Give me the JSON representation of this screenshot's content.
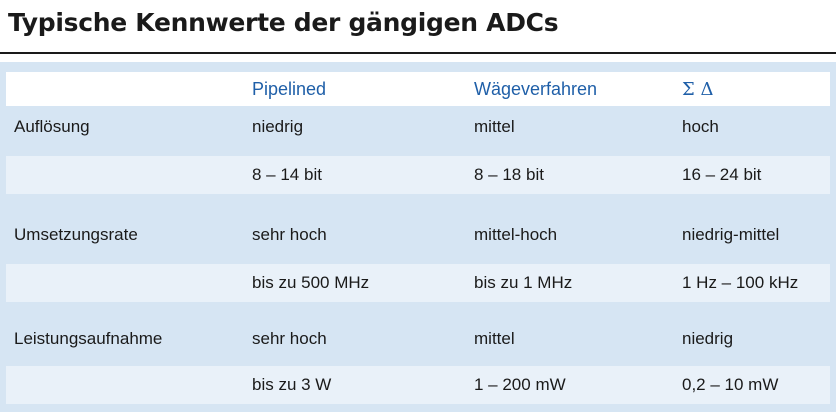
{
  "title": "Typische Kennwerte der gängigen ADCs",
  "header": {
    "col1": "Pipelined",
    "col2": "Wägeverfahren",
    "col3": "Σ Δ"
  },
  "rows": [
    {
      "label": "Auflösung",
      "c1": "niedrig",
      "c2": "mittel",
      "c3": "hoch"
    },
    {
      "label": "",
      "c1": "8 – 14 bit",
      "c2": "8 – 18 bit",
      "c3": "16 – 24 bit"
    },
    {
      "label": "Umsetzungsrate",
      "c1": "sehr hoch",
      "c2": "mittel-hoch",
      "c3": "niedrig-mittel"
    },
    {
      "label": "",
      "c1": "bis zu 500 MHz",
      "c2": "bis zu 1 MHz",
      "c3": "1 Hz – 100 kHz"
    },
    {
      "label": "Leistungsaufnahme",
      "c1": "sehr hoch",
      "c2": "mittel",
      "c3": "niedrig"
    },
    {
      "label": "",
      "c1": "bis zu 3 W",
      "c2": "1 – 200 mW",
      "c3": "0,2 – 10 mW"
    }
  ],
  "colors": {
    "header_text": "#1f5fa8",
    "table_background": "#d6e5f3",
    "light_row": "#e9f1f9"
  }
}
